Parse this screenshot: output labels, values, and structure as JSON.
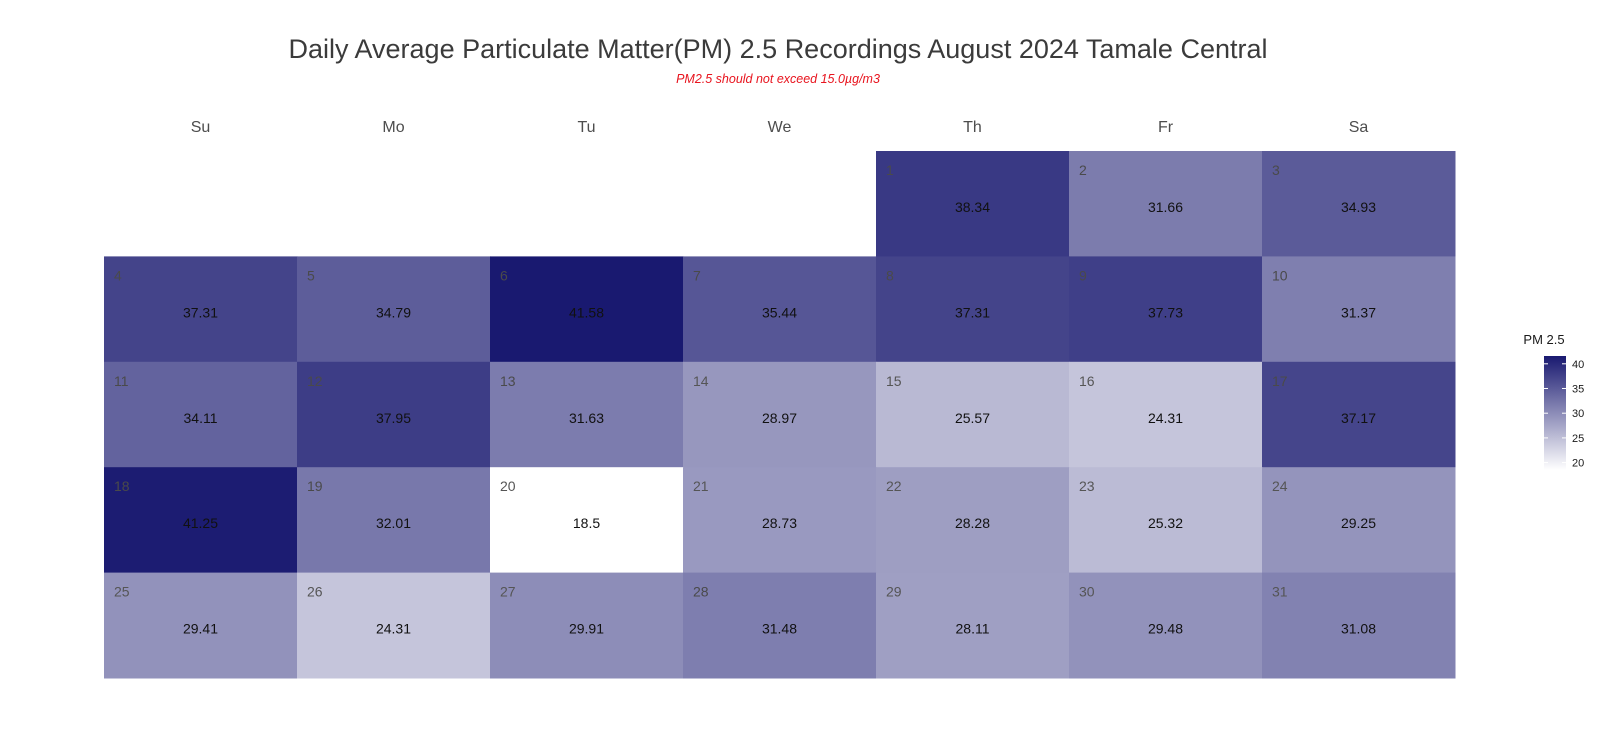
{
  "chart_data": {
    "type": "heatmap",
    "title": "Daily Average Particulate Matter(PM) 2.5 Recordings August 2024 Tamale Central",
    "subtitle": "PM2.5 should not exceed 15.0µg/m3",
    "weekdays": [
      "Su",
      "Mo",
      "Tu",
      "We",
      "Th",
      "Fr",
      "Sa"
    ],
    "first_weekday_index": 4,
    "days": [
      1,
      2,
      3,
      4,
      5,
      6,
      7,
      8,
      9,
      10,
      11,
      12,
      13,
      14,
      15,
      16,
      17,
      18,
      19,
      20,
      21,
      22,
      23,
      24,
      25,
      26,
      27,
      28,
      29,
      30,
      31
    ],
    "values": [
      38.34,
      31.66,
      34.93,
      37.31,
      34.79,
      41.58,
      35.44,
      37.31,
      37.73,
      31.37,
      34.11,
      37.95,
      31.63,
      28.97,
      25.57,
      24.31,
      37.17,
      41.25,
      32.01,
      18.5,
      28.73,
      28.28,
      25.32,
      29.25,
      29.41,
      24.31,
      29.91,
      31.48,
      28.11,
      29.48,
      31.08
    ],
    "value_labels": [
      "38.34",
      "31.66",
      "34.93",
      "37.31",
      "34.79",
      "41.58",
      "35.44",
      "37.31",
      "37.73",
      "31.37",
      "34.11",
      "37.95",
      "31.63",
      "28.97",
      "25.57",
      "24.31",
      "37.17",
      "41.25",
      "32.01",
      "18.5",
      "28.73",
      "28.28",
      "25.32",
      "29.25",
      "29.41",
      "24.31",
      "29.91",
      "31.48",
      "28.11",
      "29.48",
      "31.08"
    ],
    "color_scale": {
      "low": "#ffffff",
      "high": "#191970",
      "limits": [
        18.5,
        41.58
      ]
    },
    "legend": {
      "title": "PM 2.5",
      "placement": "right",
      "breaks": [
        40,
        35,
        30,
        25,
        20
      ],
      "break_labels": [
        "40",
        "35",
        "30",
        "25",
        "20"
      ]
    }
  }
}
